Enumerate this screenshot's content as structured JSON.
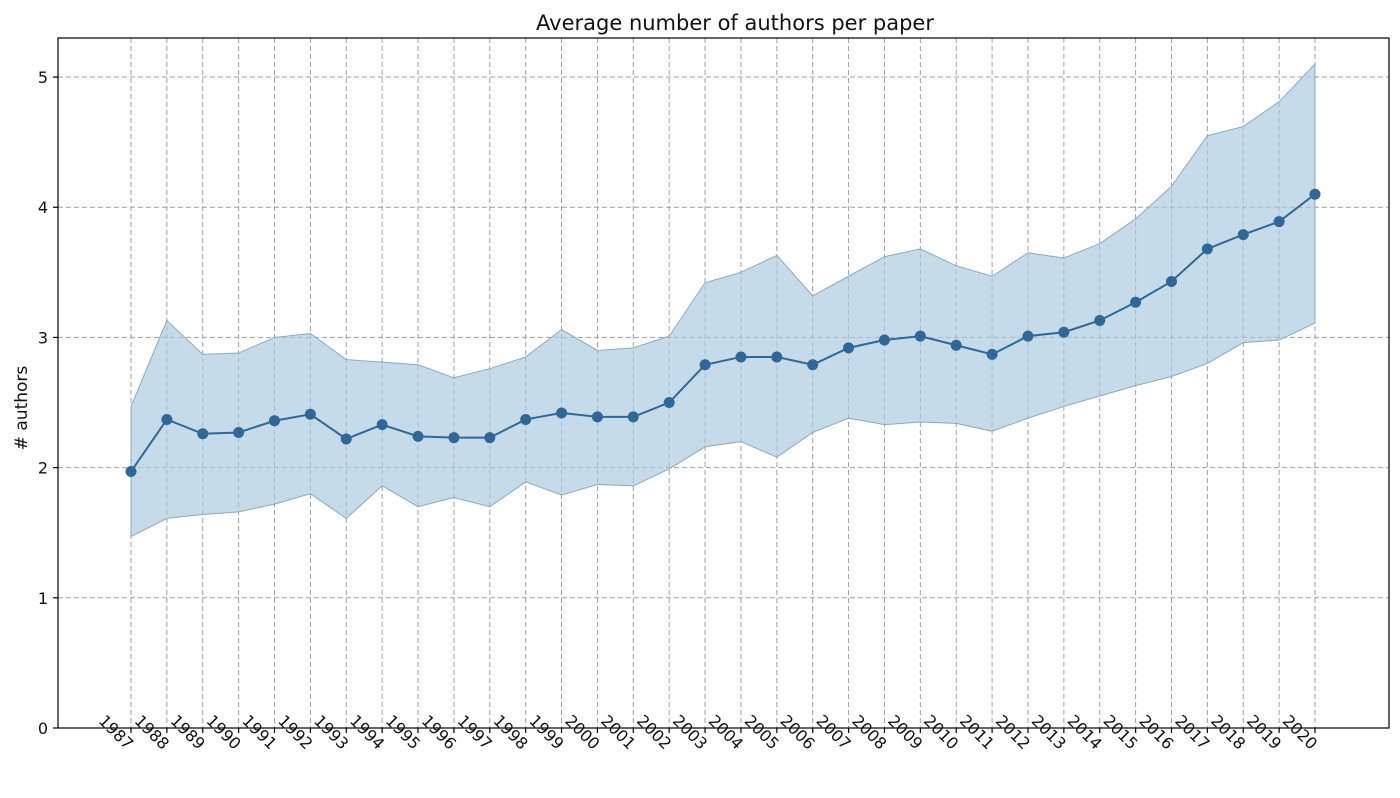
{
  "chart_data": {
    "type": "line",
    "title": "Average number of authors per paper",
    "xlabel": "",
    "ylabel": "# authors",
    "ylim": [
      0,
      5.3
    ],
    "yticks": [
      0,
      1,
      2,
      3,
      4,
      5
    ],
    "grid": true,
    "colors": {
      "line": "#2f6896",
      "band": "#a7c8df"
    },
    "x": [
      1987,
      1988,
      1989,
      1990,
      1991,
      1992,
      1993,
      1994,
      1995,
      1996,
      1997,
      1998,
      1999,
      2000,
      2001,
      2002,
      2003,
      2004,
      2005,
      2006,
      2007,
      2008,
      2009,
      2010,
      2011,
      2012,
      2013,
      2014,
      2015,
      2016,
      2017,
      2018,
      2019,
      2020
    ],
    "series": [
      {
        "name": "mean",
        "values": [
          1.97,
          2.37,
          2.26,
          2.27,
          2.36,
          2.41,
          2.22,
          2.33,
          2.24,
          2.23,
          2.23,
          2.37,
          2.42,
          2.39,
          2.39,
          2.5,
          2.79,
          2.85,
          2.85,
          2.79,
          2.92,
          2.98,
          3.01,
          2.94,
          2.87,
          3.01,
          3.04,
          3.13,
          3.27,
          3.43,
          3.68,
          3.79,
          3.89,
          4.1
        ]
      },
      {
        "name": "upper",
        "values": [
          2.47,
          3.13,
          2.87,
          2.88,
          3.0,
          3.03,
          2.83,
          2.81,
          2.79,
          2.69,
          2.76,
          2.85,
          3.06,
          2.9,
          2.92,
          3.01,
          3.42,
          3.5,
          3.63,
          3.32,
          3.47,
          3.62,
          3.68,
          3.55,
          3.47,
          3.65,
          3.61,
          3.72,
          3.91,
          4.16,
          4.55,
          4.62,
          4.81,
          5.1
        ]
      },
      {
        "name": "lower",
        "values": [
          1.47,
          1.61,
          1.64,
          1.66,
          1.72,
          1.8,
          1.61,
          1.86,
          1.7,
          1.77,
          1.7,
          1.89,
          1.79,
          1.87,
          1.86,
          1.99,
          2.16,
          2.2,
          2.08,
          2.27,
          2.38,
          2.33,
          2.35,
          2.34,
          2.28,
          2.38,
          2.47,
          2.55,
          2.63,
          2.7,
          2.8,
          2.96,
          2.98,
          3.11
        ]
      }
    ]
  }
}
